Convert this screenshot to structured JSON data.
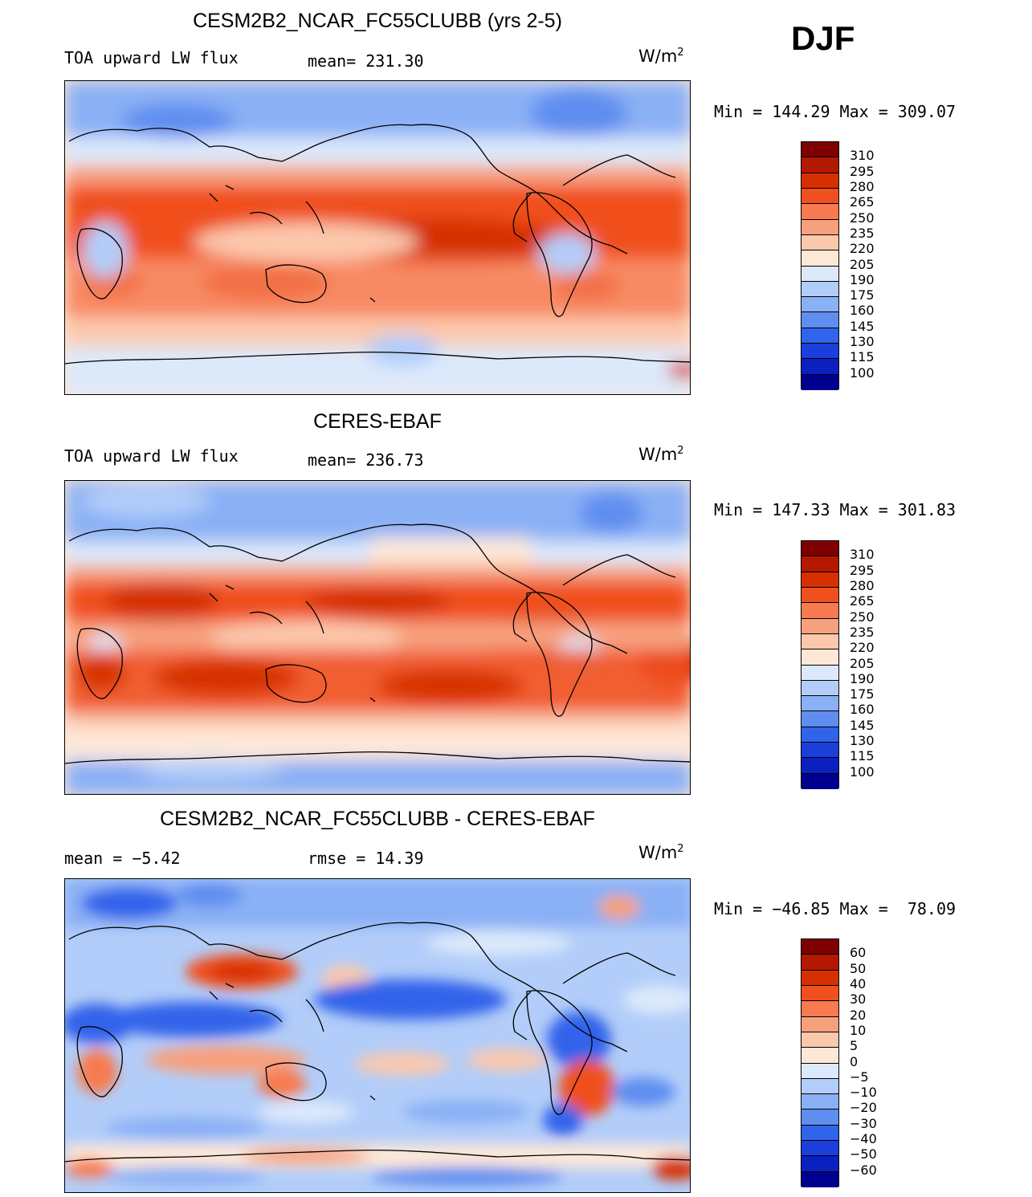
{
  "season": "DJF",
  "panels": [
    {
      "title": "CESM2B2_NCAR_FC55CLUBB (yrs 2-5)",
      "left_label": "TOA upward LW flux",
      "stat_label": "mean= 231.30",
      "units": "W/m",
      "units_sup": "2",
      "minmax": "Min = 144.29 Max = 309.07",
      "colorbar_labels": [
        "310",
        "295",
        "280",
        "265",
        "250",
        "235",
        "220",
        "205",
        "190",
        "175",
        "160",
        "145",
        "130",
        "115",
        "100"
      ]
    },
    {
      "title": "CERES-EBAF",
      "left_label": "TOA upward LW flux",
      "stat_label": "mean= 236.73",
      "units": "W/m",
      "units_sup": "2",
      "minmax": "Min = 147.33 Max = 301.83",
      "colorbar_labels": [
        "310",
        "295",
        "280",
        "265",
        "250",
        "235",
        "220",
        "205",
        "190",
        "175",
        "160",
        "145",
        "130",
        "115",
        "100"
      ]
    },
    {
      "title": "CESM2B2_NCAR_FC55CLUBB - CERES-EBAF",
      "left_label": "mean =  −5.42",
      "stat_label": "rmse =   14.39",
      "units": "W/m",
      "units_sup": "2",
      "minmax": "Min = −46.85 Max =  78.09",
      "colorbar_labels": [
        "60",
        "50",
        "40",
        "30",
        "20",
        "10",
        "5",
        "0",
        "−5",
        "−10",
        "−20",
        "−30",
        "−40",
        "−50",
        "−60"
      ]
    }
  ],
  "colorbar_colors": [
    "#7f0000",
    "#b31800",
    "#d63000",
    "#f0501e",
    "#f77a50",
    "#f7a07e",
    "#fcc8ac",
    "#fde8d8",
    "#dce9fb",
    "#b2cdf9",
    "#8ab0f5",
    "#5f8ef0",
    "#3064ea",
    "#1a3fdb",
    "#0c20c0",
    "#000090"
  ]
}
